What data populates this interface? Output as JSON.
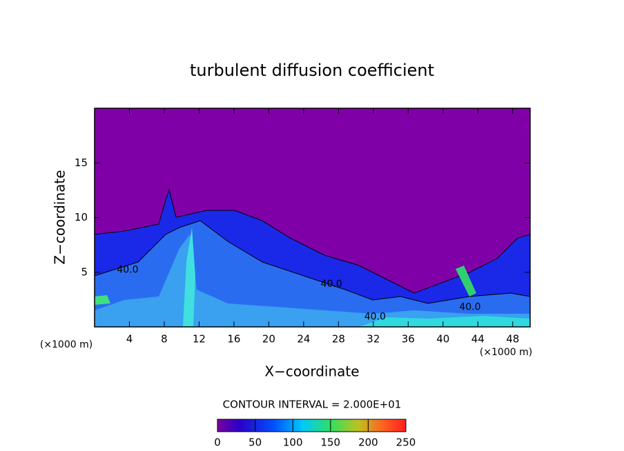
{
  "chart_data": {
    "type": "contour",
    "title": "turbulent diffusion coefficient",
    "x_label": "X−coordinate",
    "y_label": "Z−coordinate",
    "x_unit_label": "(×1000 m)",
    "xlim": [
      0,
      50
    ],
    "ylim": [
      0,
      20
    ],
    "xticks": [
      4,
      8,
      12,
      16,
      20,
      24,
      28,
      32,
      36,
      40,
      44,
      48
    ],
    "yticks": [
      5,
      10,
      15
    ],
    "contour_interval": 20,
    "contour_interval_label": "CONTOUR INTERVAL = 2.000E+01",
    "contour_labels": [
      {
        "label": "40.0",
        "value": 40,
        "x": 3.8,
        "z": 5.2
      },
      {
        "label": "40.0",
        "value": 40,
        "x": 27.2,
        "z": 3.9
      },
      {
        "label": "40.0",
        "value": 40,
        "x": 32.2,
        "z": 0.9
      },
      {
        "label": "40.0",
        "value": 40,
        "x": 43.1,
        "z": 1.8
      }
    ],
    "colorbar": {
      "clim": [
        0,
        250
      ],
      "ticks": [
        0,
        50,
        100,
        150,
        200,
        250
      ]
    }
  }
}
